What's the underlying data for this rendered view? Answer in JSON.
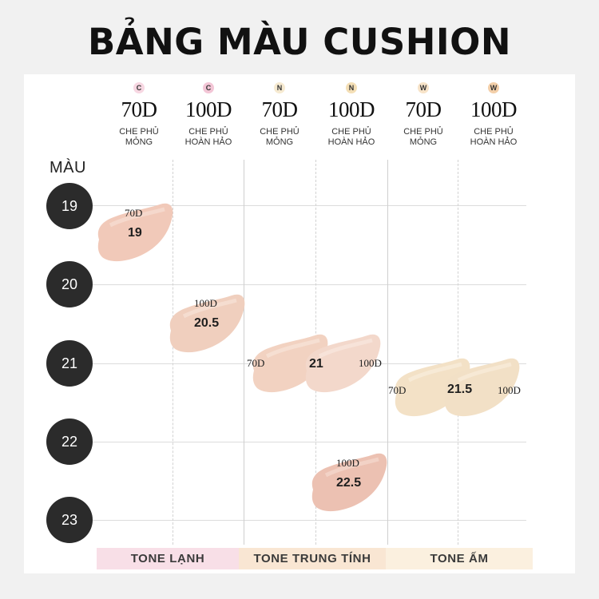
{
  "title": "BẢNG MÀU CUSHION",
  "row_title": "MÀU",
  "columns": [
    {
      "badge": "C",
      "badge_color": "#f7d7e2",
      "density": "70D",
      "coverage_line1": "CHE PHỦ",
      "coverage_line2": "MỎNG"
    },
    {
      "badge": "C",
      "badge_color": "#f3c6d6",
      "density": "100D",
      "coverage_line1": "CHE PHỦ",
      "coverage_line2": "HOÀN HẢO"
    },
    {
      "badge": "N",
      "badge_color": "#f6ead1",
      "density": "70D",
      "coverage_line1": "CHE PHỦ",
      "coverage_line2": "MỎNG"
    },
    {
      "badge": "N",
      "badge_color": "#f4dfb6",
      "density": "100D",
      "coverage_line1": "CHE PHỦ",
      "coverage_line2": "HOÀN HẢO"
    },
    {
      "badge": "W",
      "badge_color": "#f7e3c8",
      "density": "70D",
      "coverage_line1": "CHE PHỦ",
      "coverage_line2": "MỎNG"
    },
    {
      "badge": "W",
      "badge_color": "#f3cfa9",
      "density": "100D",
      "coverage_line1": "CHE PHỦ",
      "coverage_line2": "HOÀN HẢO"
    }
  ],
  "shades": [
    "19",
    "20",
    "21",
    "22",
    "23"
  ],
  "swatches": [
    {
      "shade_label": "19",
      "density_label": "70D",
      "color": "#f1c9b9"
    },
    {
      "shade_label": "20.5",
      "density_label": "100D",
      "color": "#f0cfbe"
    },
    {
      "shade_label": "21",
      "density_label_left": "70D",
      "density_label_right": "100D",
      "color_left": "#f2d2c1",
      "color_right": "#f3d8cb"
    },
    {
      "shade_label": "21.5",
      "density_label_left": "70D",
      "density_label_right": "100D",
      "color_left": "#f3e1c6",
      "color_right": "#f2e0c6"
    },
    {
      "shade_label": "22.5",
      "density_label": "100D",
      "color": "#ecc1b2"
    }
  ],
  "tones": [
    {
      "label": "TONE LẠNH",
      "color": "#f8dfe7"
    },
    {
      "label": "TONE TRUNG TÍNH",
      "color": "#f9e6d3"
    },
    {
      "label": "TONE ẤM",
      "color": "#fbf0df"
    }
  ]
}
